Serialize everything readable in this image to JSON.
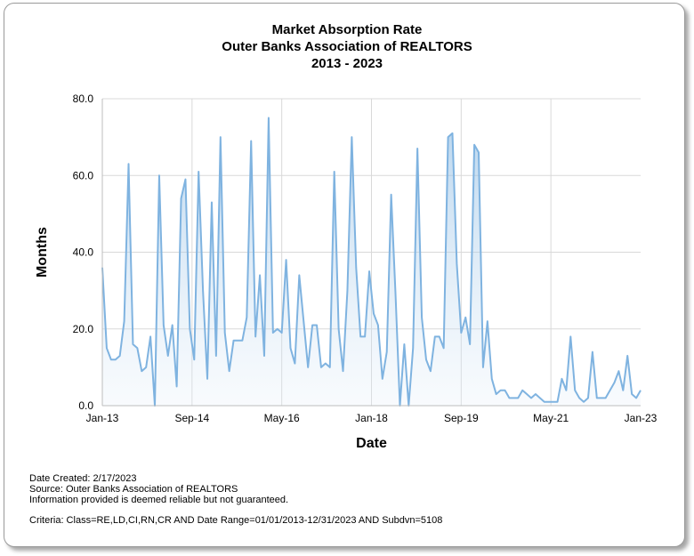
{
  "chart_data": {
    "type": "area",
    "title": [
      "Market Absorption Rate",
      "Outer Banks Association of REALTORS",
      "2013 - 2023"
    ],
    "xlabel": "Date",
    "ylabel": "Months",
    "ylim": [
      0,
      80
    ],
    "yticks": [
      "0.0",
      "20.0",
      "40.0",
      "60.0",
      "80.0"
    ],
    "xticks": [
      "Jan-13",
      "Sep-14",
      "May-16",
      "Jan-18",
      "Sep-19",
      "May-21",
      "Jan-23"
    ],
    "x_start": "Jan-13",
    "x_end": "Jan-23",
    "grid": true,
    "series_color": "#7fb3e0",
    "fill_color": "#e3eef8",
    "values": [
      36,
      15,
      12,
      12,
      13,
      22,
      63,
      16,
      15,
      9,
      10,
      18,
      0,
      60,
      21,
      13,
      21,
      5,
      54,
      59,
      20,
      12,
      61,
      30,
      7,
      53,
      13,
      70,
      19,
      9,
      17,
      17,
      17,
      23,
      69,
      18,
      34,
      13,
      75,
      19,
      20,
      19,
      38,
      15,
      11,
      34,
      22,
      10,
      21,
      21,
      10,
      11,
      10,
      61,
      20,
      9,
      30,
      70,
      36,
      18,
      18,
      35,
      24,
      21,
      7,
      14,
      55,
      29,
      0,
      16,
      0,
      15,
      67,
      23,
      12,
      9,
      18,
      18,
      15,
      70,
      71,
      37,
      19,
      23,
      16,
      68,
      66,
      10,
      22,
      7,
      3,
      4,
      4,
      2,
      2,
      2,
      4,
      3,
      2,
      3,
      2,
      1,
      1,
      1,
      1,
      7,
      4,
      18,
      4,
      2,
      1,
      2,
      14,
      2,
      2,
      2,
      4,
      6,
      9,
      4,
      13,
      3,
      2,
      4
    ]
  },
  "footer": {
    "date_created": "Date Created: 2/17/2023",
    "source": "Source: Outer Banks Association of REALTORS",
    "disclaimer": "Information provided is deemed reliable but not guaranteed.",
    "criteria": "Criteria: Class=RE,LD,CI,RN,CR AND Date Range=01/01/2013-12/31/2023 AND Subdvn=5108"
  }
}
